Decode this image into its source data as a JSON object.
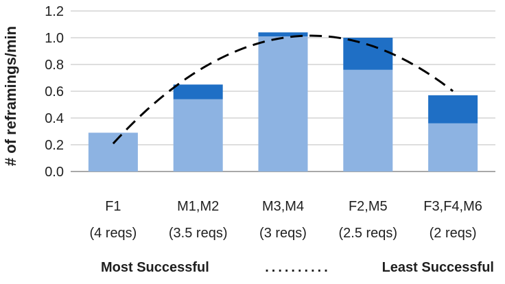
{
  "chart_data": {
    "type": "bar",
    "stacked": true,
    "ylabel": "# of reframings/min",
    "ylim": [
      0,
      1.2
    ],
    "yticks": [
      "0.0",
      "0.2",
      "0.4",
      "0.6",
      "0.8",
      "1.0",
      "1.2"
    ],
    "grid": true,
    "categories": [
      "F1",
      "M1,M2",
      "M3,M4",
      "F2,M5",
      "F3,F4,M6"
    ],
    "category_sublabels": [
      "(4 reqs)",
      "(3.5 reqs)",
      "(3 reqs)",
      "(2.5 reqs)",
      "(2 reqs)"
    ],
    "series": [
      {
        "values": [
          0.29,
          0.54,
          1.01,
          0.76,
          0.36
        ],
        "color": "#8db3e2"
      },
      {
        "values": [
          0.0,
          0.11,
          0.03,
          0.24,
          0.21
        ],
        "color": "#1f6fc5"
      }
    ],
    "trendline": {
      "style": "dashed",
      "color": "#000000",
      "shape": "quadratic",
      "x": [
        0,
        1,
        2,
        3,
        4
      ],
      "y": [
        0.22,
        0.73,
        1.0,
        0.97,
        0.59
      ]
    },
    "footer": {
      "left": "Most Successful",
      "middle": "..........",
      "right": "Least Successful"
    }
  }
}
